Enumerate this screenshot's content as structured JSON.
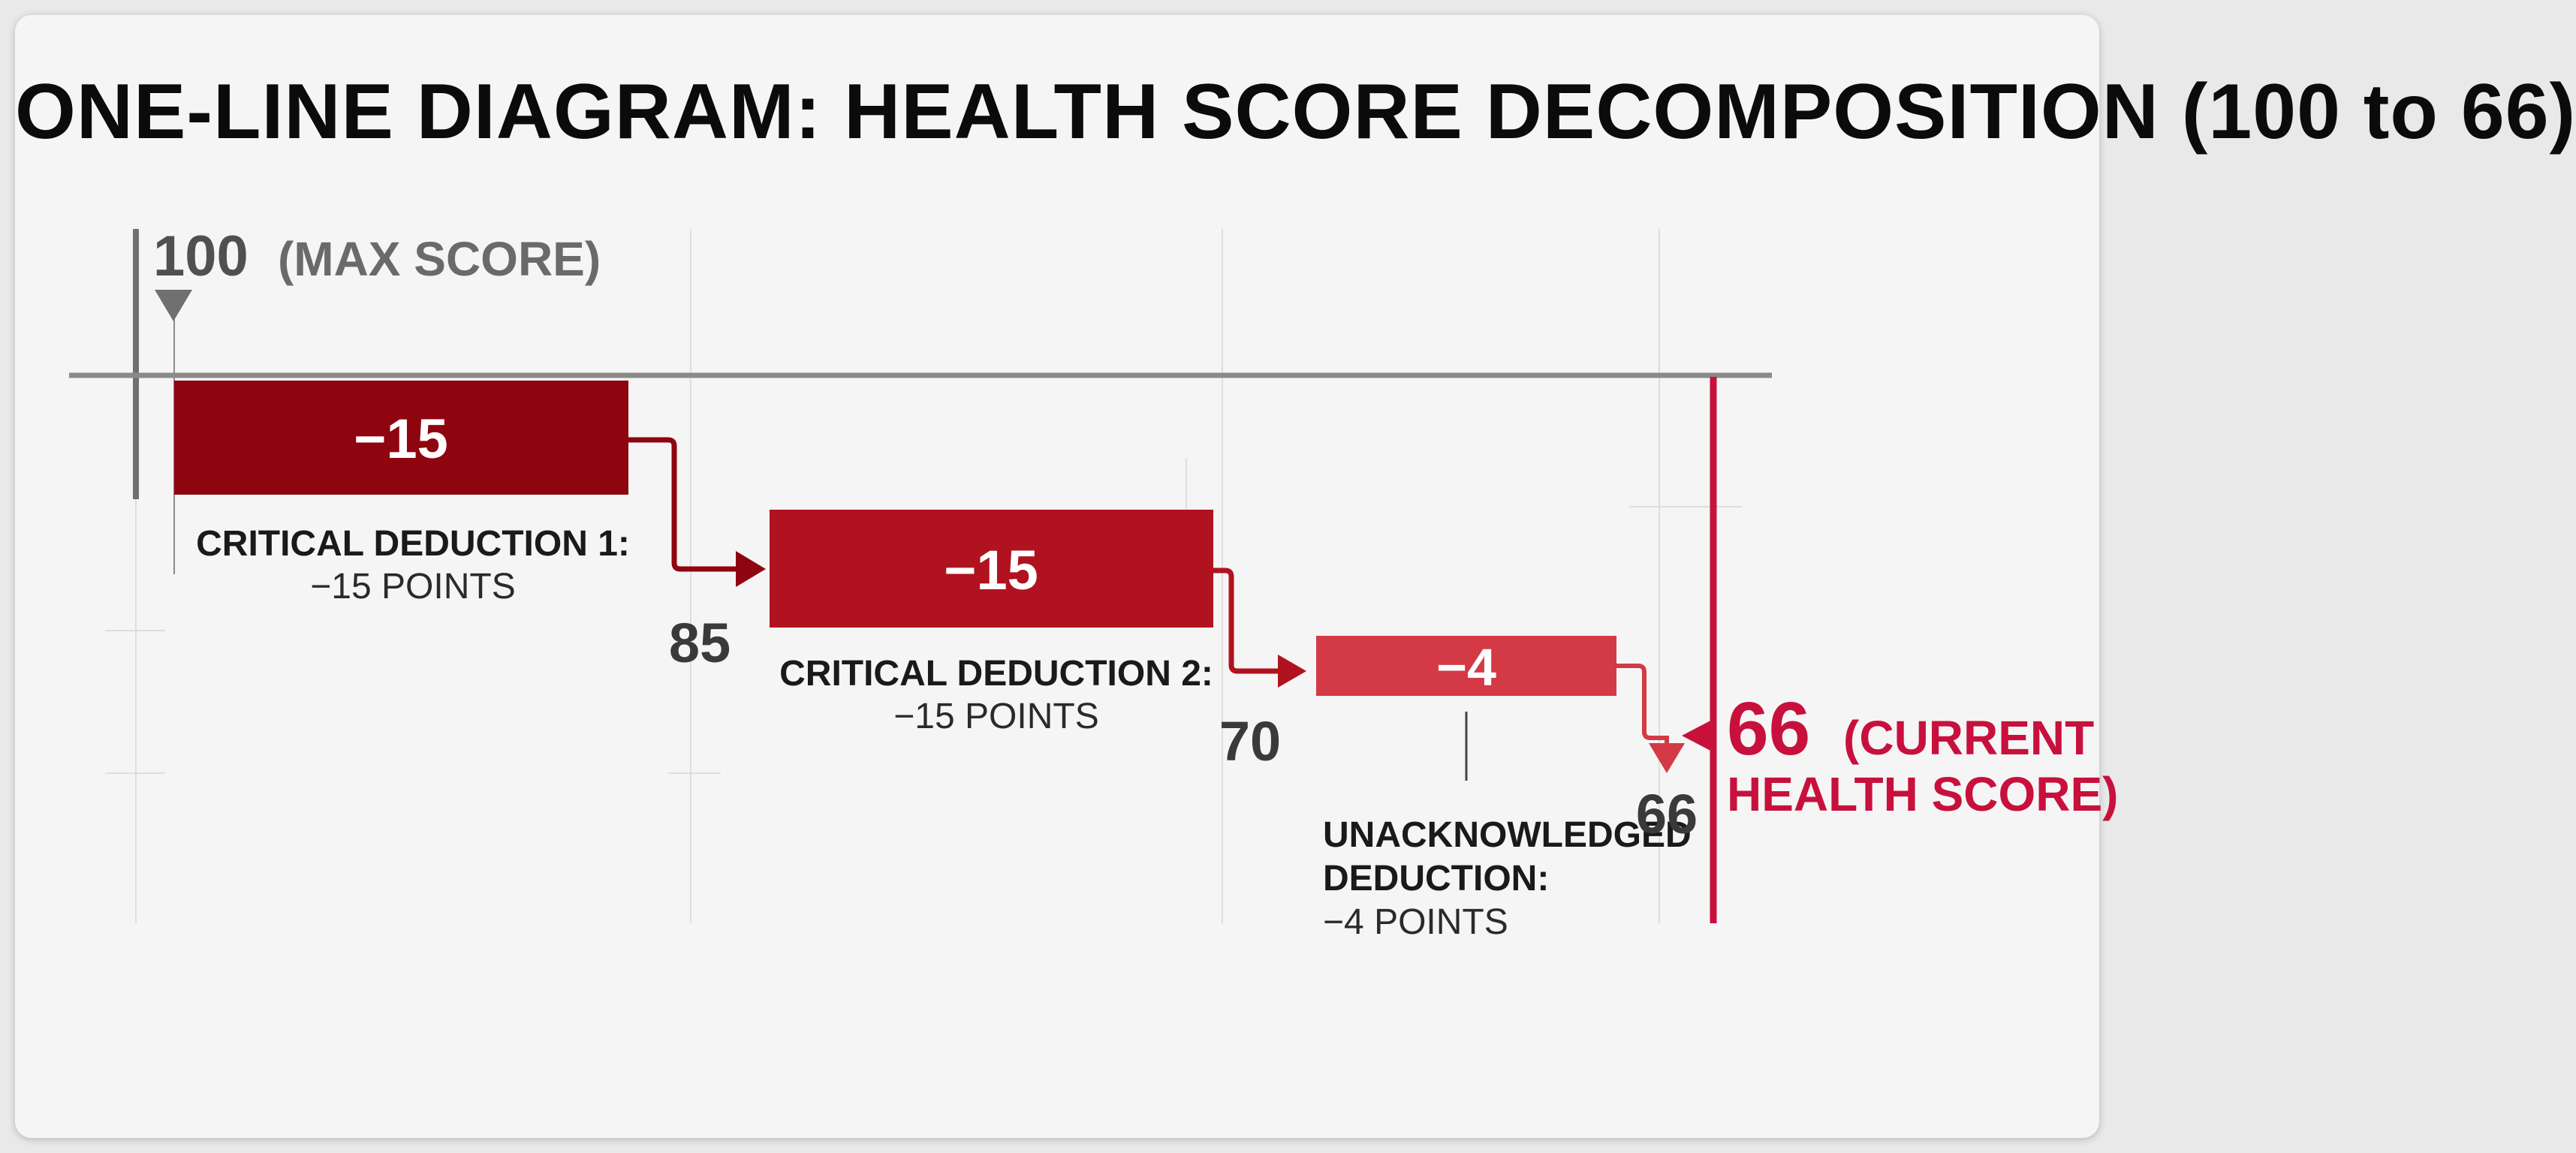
{
  "title": "ONE-LINE DIAGRAM: HEALTH SCORE DECOMPOSITION (100 to 66)",
  "start": {
    "value": "100",
    "note": "(MAX SCORE)"
  },
  "deductions": [
    {
      "bar_label": "−15",
      "caption_title": "CRITICAL DEDUCTION 1:",
      "caption_detail": "−15 POINTS",
      "result": "85",
      "color": "#8e0510"
    },
    {
      "bar_label": "−15",
      "caption_title": "CRITICAL DEDUCTION 2:",
      "caption_detail": "−15 POINTS",
      "result": "70",
      "color": "#b0121f"
    },
    {
      "bar_label": "−4",
      "caption_title_line1": "UNACKNOWLEDGED",
      "caption_title_line2": "DEDUCTION:",
      "caption_detail": "−4 POINTS",
      "result": "66",
      "color": "#d33a46"
    }
  ],
  "final": {
    "value": "66",
    "note_line1": "(CURRENT",
    "note_line2": "HEALTH SCORE)",
    "color": "#c8103d"
  }
}
